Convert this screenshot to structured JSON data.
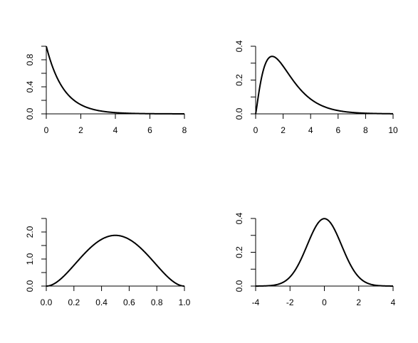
{
  "chart_data": [
    {
      "type": "line",
      "title": "",
      "xlabel": "",
      "ylabel": "",
      "xlim": [
        0,
        8
      ],
      "ylim": [
        0,
        1.0
      ],
      "x_ticks": [
        0,
        2,
        4,
        6,
        8
      ],
      "x_tick_labels": [
        "0",
        "2",
        "4",
        "6",
        "8"
      ],
      "y_ticks": [
        0.0,
        0.2,
        0.4,
        0.6,
        0.8,
        1.0
      ],
      "y_tick_labels": [
        "0.0",
        "",
        "0.4",
        "",
        "0.8",
        ""
      ],
      "grid": false,
      "curve": {
        "distribution": "exponential",
        "rate": 1,
        "x_range": [
          0,
          8
        ]
      }
    },
    {
      "type": "line",
      "title": "",
      "xlabel": "",
      "ylabel": "",
      "xlim": [
        0,
        10
      ],
      "ylim": [
        0,
        0.4
      ],
      "x_ticks": [
        0,
        2,
        4,
        6,
        8,
        10
      ],
      "x_tick_labels": [
        "0",
        "2",
        "4",
        "6",
        "8",
        "10"
      ],
      "y_ticks": [
        0.0,
        0.1,
        0.2,
        0.3,
        0.4
      ],
      "y_tick_labels": [
        "0.0",
        "",
        "0.2",
        "",
        "0.4"
      ],
      "grid": false,
      "curve": {
        "distribution": "gamma",
        "shape": 2.2,
        "scale": 1,
        "x_range": [
          0,
          10
        ]
      }
    },
    {
      "type": "line",
      "title": "",
      "xlabel": "",
      "ylabel": "",
      "xlim": [
        0,
        1
      ],
      "ylim": [
        0,
        2.5
      ],
      "x_ticks": [
        0.0,
        0.2,
        0.4,
        0.6,
        0.8,
        1.0
      ],
      "x_tick_labels": [
        "0.0",
        "0.2",
        "0.4",
        "0.6",
        "0.8",
        "1.0"
      ],
      "y_ticks": [
        0.0,
        0.5,
        1.0,
        1.5,
        2.0,
        2.5
      ],
      "y_tick_labels": [
        "0.0",
        "",
        "1.0",
        "",
        "2.0",
        ""
      ],
      "grid": false,
      "curve": {
        "distribution": "beta",
        "alpha": 3,
        "beta": 3,
        "x_range": [
          0,
          1
        ]
      }
    },
    {
      "type": "line",
      "title": "",
      "xlabel": "",
      "ylabel": "",
      "xlim": [
        -4,
        4
      ],
      "ylim": [
        0,
        0.4
      ],
      "x_ticks": [
        -4,
        -2,
        0,
        2,
        4
      ],
      "x_tick_labels": [
        "-4",
        "-2",
        "0",
        "2",
        "4"
      ],
      "y_ticks": [
        0.0,
        0.1,
        0.2,
        0.3,
        0.4
      ],
      "y_tick_labels": [
        "0.0",
        "",
        "0.2",
        "",
        "0.4"
      ],
      "grid": false,
      "curve": {
        "distribution": "normal",
        "mean": 0,
        "sd": 1,
        "x_range": [
          -4,
          4
        ]
      }
    }
  ]
}
